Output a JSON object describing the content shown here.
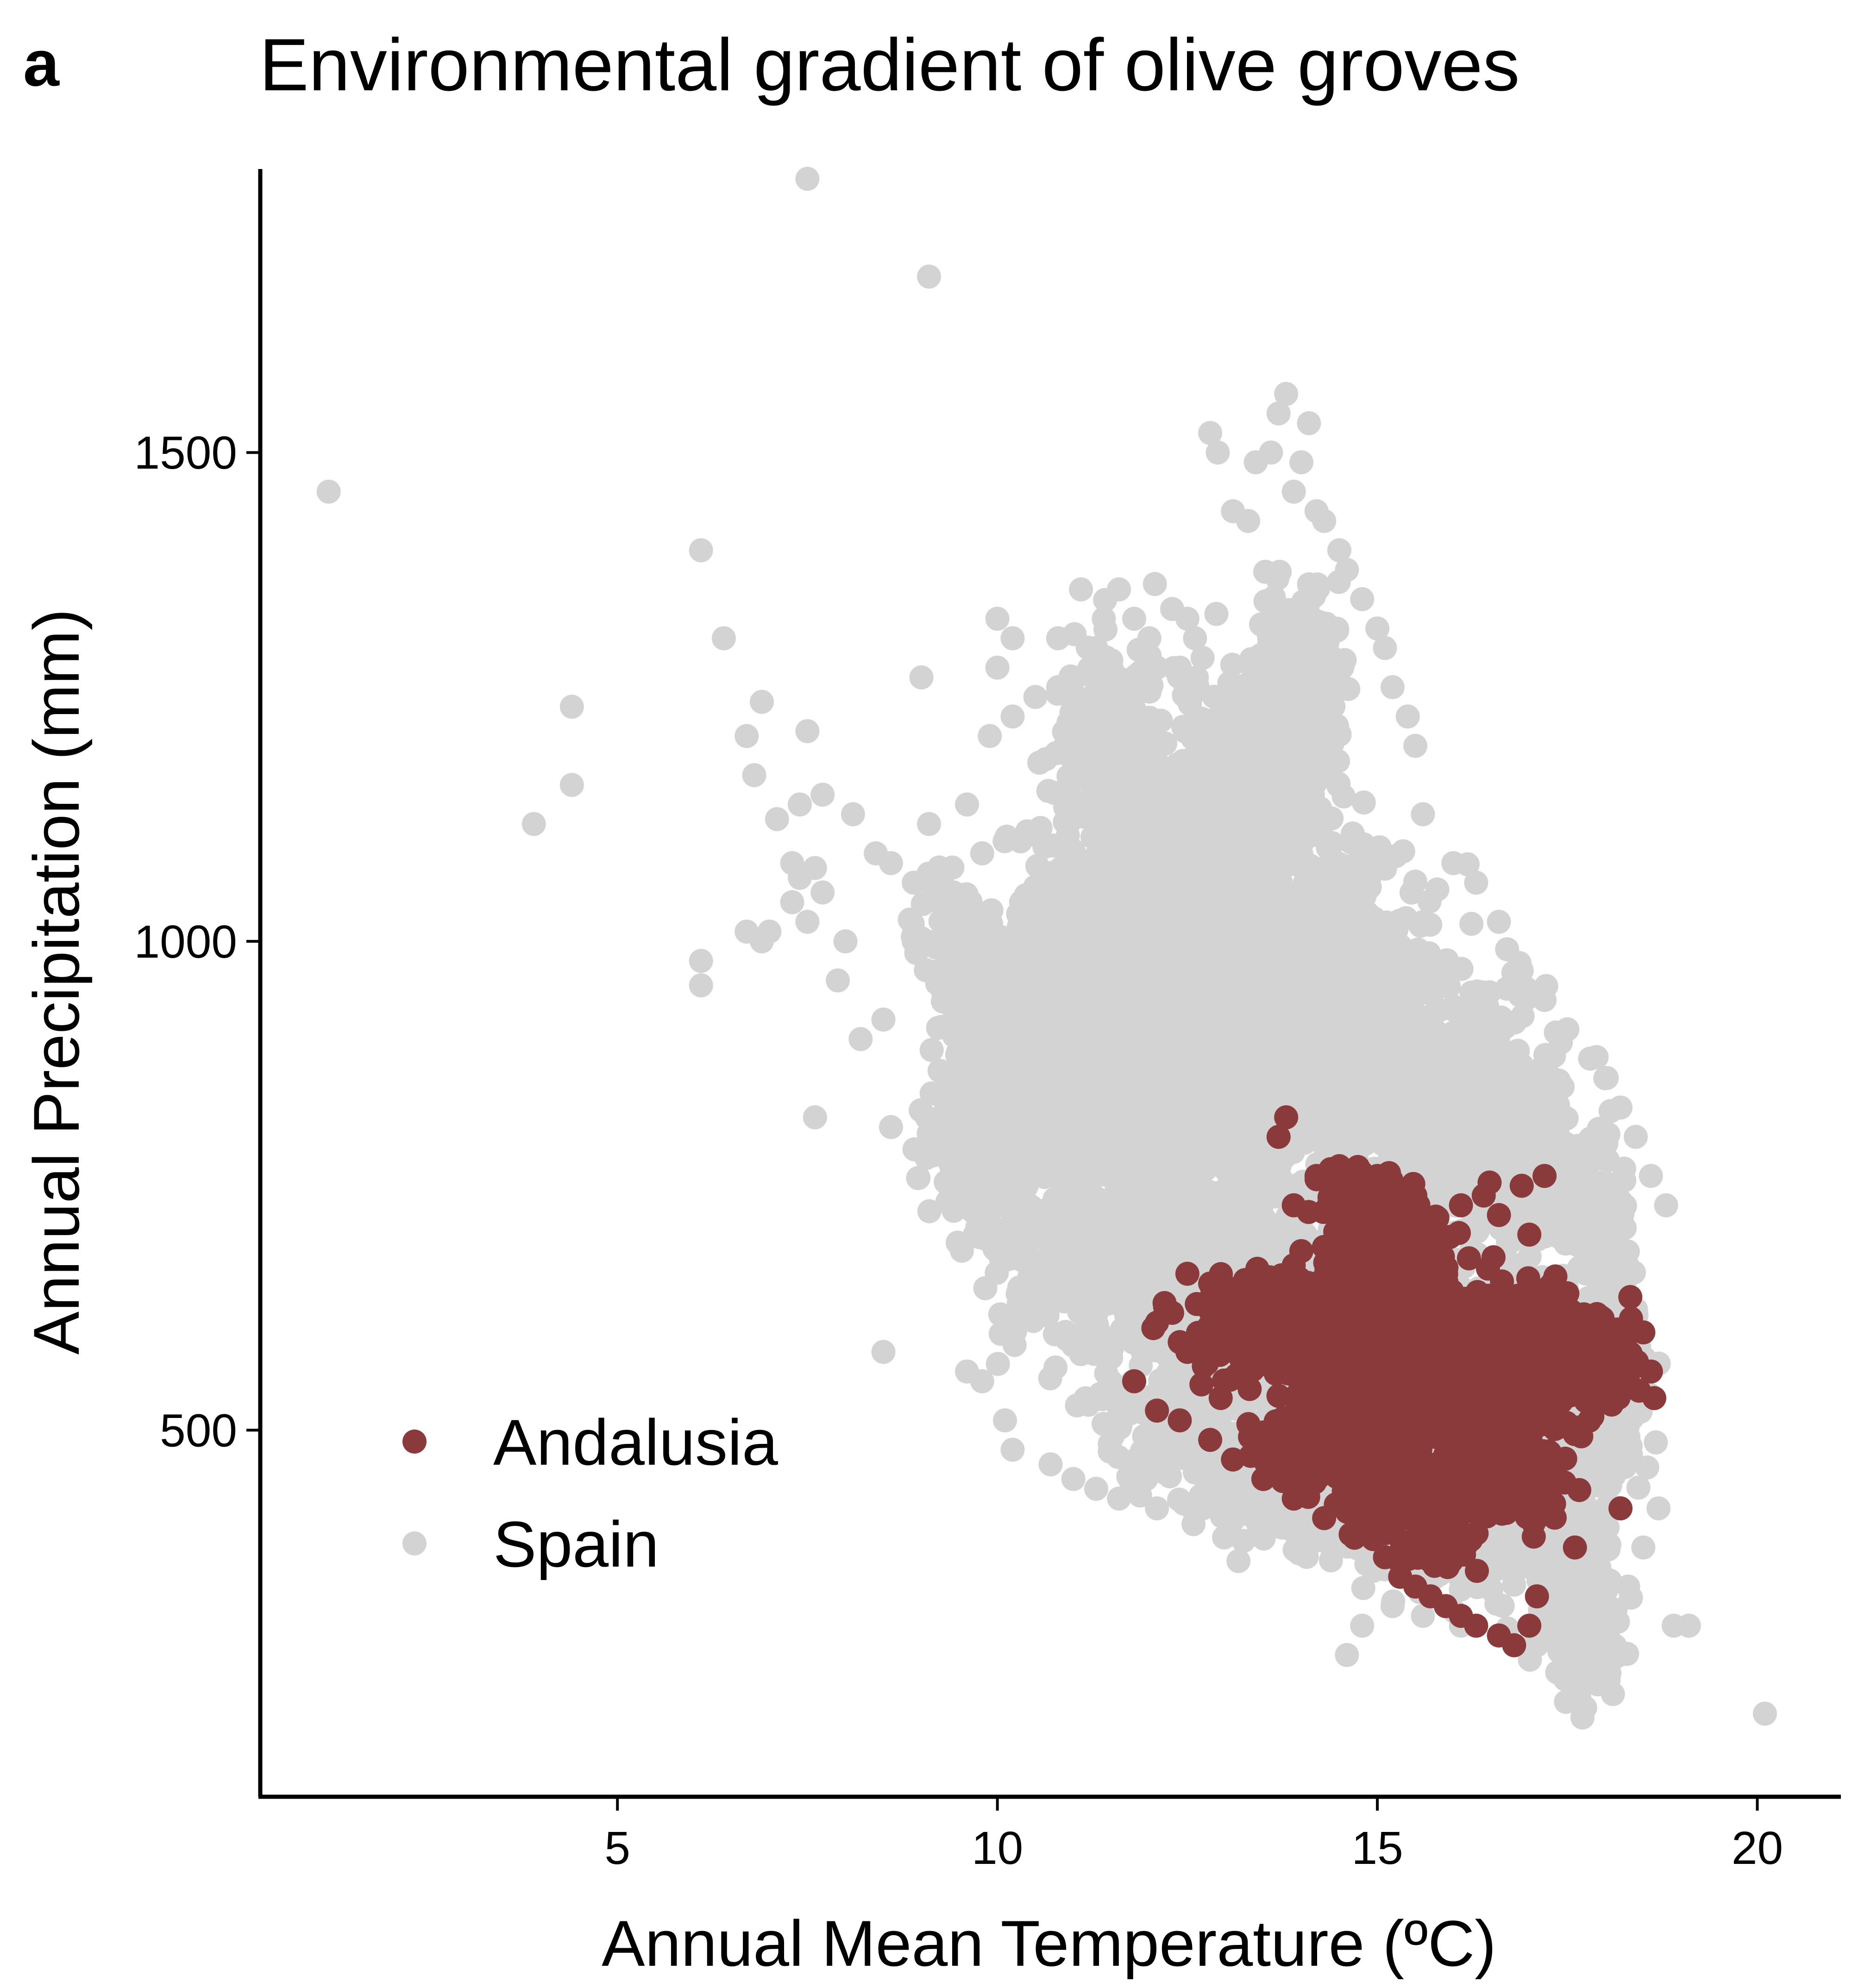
{
  "panel_label": "a",
  "chart_data": {
    "type": "scatter",
    "title": "Environmental gradient of olive groves",
    "xlabel": "Annual Mean Temperature (ºC)",
    "ylabel": "Annual Precipitation (mm)",
    "xlim": [
      0.3,
      21.1
    ],
    "ylim": [
      125,
      1790
    ],
    "x_ticks": [
      5,
      10,
      15,
      20
    ],
    "x_tick_labels": [
      "5",
      "10",
      "15",
      "20"
    ],
    "y_ticks": [
      500,
      1000,
      1500
    ],
    "y_tick_labels": [
      "500",
      "1000",
      "1500"
    ],
    "grid": false,
    "legend_position": "bottom-left",
    "series": [
      {
        "name": "Spain",
        "color": "#d3d3d3",
        "points": [
          [
            1.2,
            1460
          ],
          [
            3.9,
            1120
          ],
          [
            4.4,
            1160
          ],
          [
            4.4,
            1240
          ],
          [
            6.1,
            1400
          ],
          [
            6.1,
            980
          ],
          [
            6.1,
            955
          ],
          [
            6.4,
            1310
          ],
          [
            6.7,
            1210
          ],
          [
            6.8,
            1170
          ],
          [
            6.9,
            1245
          ],
          [
            6.7,
            1010
          ],
          [
            6.9,
            1000
          ],
          [
            7.0,
            1010
          ],
          [
            7.1,
            1125
          ],
          [
            7.3,
            1080
          ],
          [
            7.4,
            1065
          ],
          [
            7.3,
            1040
          ],
          [
            7.5,
            1020
          ],
          [
            7.4,
            1140
          ],
          [
            7.5,
            1215
          ],
          [
            7.6,
            1075
          ],
          [
            7.7,
            1050
          ],
          [
            7.5,
            1780
          ],
          [
            7.6,
            820
          ],
          [
            7.7,
            1150
          ],
          [
            7.9,
            960
          ],
          [
            8.0,
            1000
          ],
          [
            8.1,
            1130
          ],
          [
            8.2,
            900
          ],
          [
            8.4,
            1090
          ],
          [
            8.6,
            1080
          ],
          [
            8.5,
            920
          ],
          [
            8.6,
            810
          ],
          [
            8.9,
            1060
          ],
          [
            8.9,
            1000
          ],
          [
            9.0,
            1270
          ],
          [
            9.1,
            1680
          ],
          [
            9.1,
            1120
          ],
          [
            9.3,
            1070
          ],
          [
            9.6,
            1140
          ],
          [
            9.8,
            1090
          ],
          [
            9.9,
            1210
          ],
          [
            10.0,
            1330
          ],
          [
            10.0,
            1280
          ],
          [
            10.2,
            1310
          ],
          [
            10.2,
            1230
          ],
          [
            10.5,
            1250
          ],
          [
            10.8,
            1260
          ],
          [
            10.8,
            1310
          ],
          [
            11.0,
            1230
          ],
          [
            11.1,
            1360
          ],
          [
            11.3,
            1300
          ],
          [
            11.4,
            1330
          ],
          [
            11.5,
            1280
          ],
          [
            11.6,
            1360
          ],
          [
            11.8,
            1330
          ],
          [
            12.0,
            1310
          ],
          [
            12.1,
            1280
          ],
          [
            12.3,
            1340
          ],
          [
            12.4,
            1280
          ],
          [
            12.5,
            1330
          ],
          [
            12.6,
            1310
          ],
          [
            12.7,
            1290
          ],
          [
            12.8,
            1520
          ],
          [
            12.9,
            1500
          ],
          [
            13.1,
            1440
          ],
          [
            13.3,
            1430
          ],
          [
            13.4,
            1490
          ],
          [
            13.6,
            1500
          ],
          [
            13.7,
            1540
          ],
          [
            13.8,
            1560
          ],
          [
            13.9,
            1460
          ],
          [
            14.0,
            1490
          ],
          [
            14.1,
            1530
          ],
          [
            14.2,
            1440
          ],
          [
            14.3,
            1430
          ],
          [
            14.5,
            1400
          ],
          [
            14.6,
            1380
          ],
          [
            14.8,
            1350
          ],
          [
            15.0,
            1320
          ],
          [
            15.1,
            1300
          ],
          [
            15.2,
            1260
          ],
          [
            15.4,
            1230
          ],
          [
            15.5,
            1200
          ],
          [
            15.6,
            1130
          ],
          [
            16.0,
            1080
          ],
          [
            16.3,
            1060
          ],
          [
            16.6,
            1020
          ],
          [
            16.9,
            970
          ],
          [
            17.2,
            940
          ],
          [
            17.5,
            910
          ],
          [
            17.8,
            880
          ],
          [
            18.0,
            860
          ],
          [
            18.2,
            830
          ],
          [
            18.4,
            800
          ],
          [
            18.6,
            760
          ],
          [
            18.8,
            730
          ],
          [
            18.9,
            300
          ],
          [
            19.1,
            300
          ],
          [
            20.1,
            210
          ],
          [
            8.5,
            580
          ],
          [
            9.6,
            560
          ],
          [
            9.8,
            550
          ],
          [
            10.1,
            510
          ],
          [
            10.2,
            480
          ],
          [
            10.7,
            465
          ],
          [
            11.0,
            450
          ],
          [
            11.3,
            440
          ],
          [
            11.6,
            430
          ],
          [
            12.1,
            420
          ],
          [
            12.6,
            415
          ],
          [
            13.0,
            410
          ],
          [
            13.5,
            400
          ],
          [
            14.1,
            390
          ],
          [
            14.4,
            380
          ],
          [
            14.6,
            270
          ],
          [
            14.8,
            300
          ],
          [
            15.2,
            320
          ],
          [
            15.6,
            310
          ],
          [
            16.1,
            300
          ],
          [
            16.6,
            290
          ],
          [
            17.1,
            280
          ],
          [
            17.5,
            260
          ],
          [
            17.9,
            240
          ],
          [
            18.1,
            230
          ],
          [
            18.0,
            280
          ],
          [
            18.3,
            340
          ],
          [
            18.5,
            380
          ],
          [
            18.7,
            420
          ]
        ],
        "clusters": [
          [
            10.5,
            880,
            0.9,
            110,
            300
          ],
          [
            11.5,
            900,
            0.9,
            120,
            300
          ],
          [
            12.5,
            890,
            0.9,
            120,
            300
          ],
          [
            13.5,
            880,
            0.9,
            110,
            300
          ],
          [
            14.5,
            880,
            0.9,
            110,
            300
          ],
          [
            15.5,
            860,
            0.9,
            110,
            260
          ],
          [
            16.5,
            820,
            0.8,
            100,
            220
          ],
          [
            17.3,
            750,
            0.6,
            90,
            150
          ],
          [
            11.0,
            1000,
            0.8,
            110,
            220
          ],
          [
            12.2,
            1050,
            0.9,
            120,
            240
          ],
          [
            13.4,
            1050,
            0.9,
            110,
            240
          ],
          [
            14.4,
            1000,
            0.8,
            100,
            220
          ],
          [
            13.6,
            1200,
            0.5,
            100,
            160
          ],
          [
            14.0,
            1250,
            0.5,
            100,
            160
          ],
          [
            11.5,
            1200,
            0.6,
            90,
            140
          ],
          [
            12.5,
            1150,
            0.7,
            90,
            140
          ],
          [
            12.0,
            700,
            0.9,
            100,
            260
          ],
          [
            13.0,
            650,
            0.9,
            100,
            260
          ],
          [
            14.0,
            620,
            0.9,
            90,
            260
          ],
          [
            15.0,
            600,
            0.9,
            90,
            260
          ],
          [
            16.0,
            580,
            0.9,
            90,
            240
          ],
          [
            17.0,
            540,
            0.8,
            90,
            220
          ],
          [
            11.0,
            680,
            0.8,
            90,
            200
          ],
          [
            12.5,
            520,
            0.8,
            70,
            200
          ],
          [
            13.5,
            460,
            0.7,
            60,
            200
          ],
          [
            14.5,
            440,
            0.7,
            60,
            200
          ],
          [
            15.5,
            420,
            0.7,
            60,
            200
          ],
          [
            16.5,
            410,
            0.7,
            60,
            200
          ],
          [
            17.5,
            380,
            0.5,
            70,
            180
          ],
          [
            17.7,
            290,
            0.35,
            45,
            140
          ],
          [
            9.8,
            790,
            0.6,
            80,
            180
          ],
          [
            10.0,
            950,
            0.5,
            70,
            120
          ],
          [
            9.4,
            990,
            0.4,
            60,
            80
          ],
          [
            18.0,
            680,
            0.35,
            90,
            100
          ],
          [
            18.1,
            520,
            0.35,
            80,
            100
          ]
        ]
      },
      {
        "name": "Andalusia",
        "color": "#8b3a3c",
        "points": [
          [
            11.8,
            550
          ],
          [
            12.1,
            610
          ],
          [
            12.2,
            630
          ],
          [
            12.3,
            620
          ],
          [
            12.4,
            590
          ],
          [
            12.5,
            580
          ],
          [
            12.5,
            660
          ],
          [
            12.8,
            650
          ],
          [
            13.4,
            660
          ],
          [
            13.7,
            800
          ],
          [
            13.8,
            820
          ],
          [
            13.9,
            730
          ],
          [
            14.2,
            760
          ],
          [
            14.4,
            750
          ],
          [
            14.5,
            770
          ],
          [
            15.0,
            760
          ],
          [
            15.5,
            740
          ],
          [
            16.1,
            730
          ],
          [
            16.4,
            740
          ],
          [
            16.6,
            720
          ],
          [
            16.9,
            750
          ],
          [
            17.2,
            760
          ],
          [
            17.0,
            700
          ],
          [
            17.3,
            650
          ],
          [
            17.5,
            640
          ],
          [
            18.6,
            560
          ],
          [
            18.5,
            600
          ],
          [
            18.2,
            420
          ],
          [
            17.6,
            380
          ],
          [
            17.1,
            330
          ],
          [
            17.0,
            300
          ],
          [
            16.8,
            280
          ],
          [
            16.6,
            290
          ],
          [
            16.3,
            300
          ],
          [
            16.1,
            310
          ],
          [
            15.9,
            320
          ],
          [
            15.7,
            330
          ],
          [
            15.5,
            340
          ],
          [
            15.3,
            350
          ],
          [
            12.1,
            520
          ],
          [
            12.4,
            510
          ],
          [
            12.8,
            490
          ],
          [
            13.1,
            470
          ],
          [
            13.5,
            450
          ],
          [
            13.9,
            430
          ],
          [
            14.3,
            410
          ],
          [
            14.7,
            390
          ],
          [
            15.1,
            370
          ]
        ],
        "clusters": [
          [
            15.5,
            570,
            1.0,
            70,
            520
          ],
          [
            16.2,
            560,
            0.9,
            70,
            420
          ],
          [
            14.6,
            580,
            0.8,
            60,
            360
          ],
          [
            13.5,
            600,
            0.7,
            40,
            240
          ],
          [
            15.2,
            680,
            0.6,
            50,
            220
          ],
          [
            14.8,
            730,
            0.4,
            30,
            120
          ],
          [
            17.2,
            580,
            0.6,
            50,
            220
          ],
          [
            17.9,
            570,
            0.4,
            40,
            140
          ],
          [
            16.0,
            440,
            0.7,
            30,
            260
          ],
          [
            15.2,
            440,
            0.6,
            30,
            200
          ],
          [
            14.2,
            480,
            0.6,
            30,
            160
          ],
          [
            16.8,
            460,
            0.5,
            40,
            160
          ],
          [
            15.8,
            380,
            0.4,
            20,
            90
          ]
        ]
      }
    ]
  }
}
